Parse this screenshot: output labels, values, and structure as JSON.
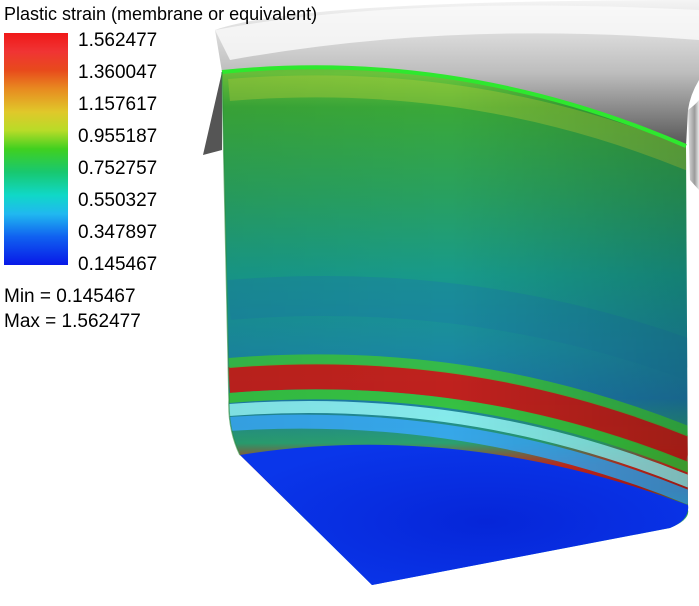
{
  "legend": {
    "title": "Plastic strain (membrane or equivalent)",
    "ticks": [
      "1.562477",
      "1.360047",
      "1.157617",
      "0.955187",
      "0.752757",
      "0.550327",
      "0.347897",
      "0.145467"
    ],
    "min_label": "Min =  0.145467",
    "max_label": "Max =  1.562477",
    "colormap": [
      "#f01818",
      "#e88a20",
      "#e0c82a",
      "#40d020",
      "#10d8c8",
      "#20b8f0",
      "#0818e8"
    ]
  },
  "colors": {
    "background": "#ffffff",
    "die_surface": "#c8c8c8",
    "part_edge": "#2ee82e"
  }
}
